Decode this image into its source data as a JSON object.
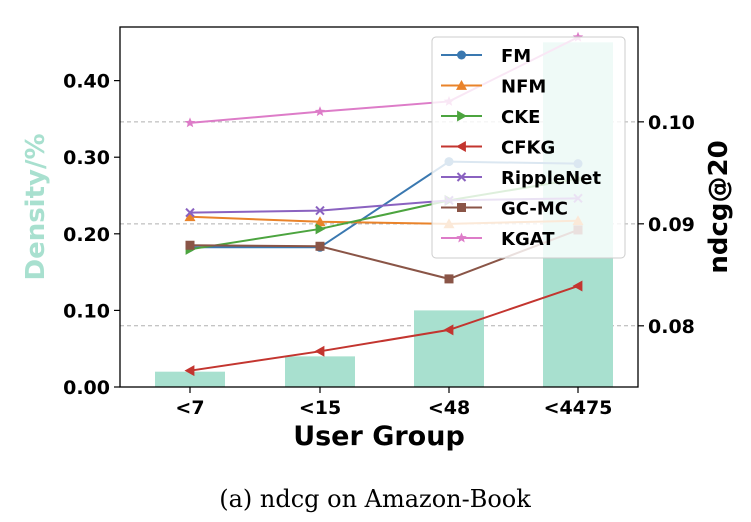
{
  "chart_data": {
    "type": "bar+line",
    "caption": "(a)  ndcg on Amazon-Book",
    "xlabel": "User Group",
    "categories": [
      "<7",
      "<15",
      "<48",
      "<4475"
    ],
    "density": {
      "axis_label": "Density/%",
      "color": "#a8e0cf",
      "values": [
        0.02,
        0.04,
        0.1,
        0.45
      ],
      "ylim": [
        0,
        0.47
      ],
      "ticks": [
        "0.00",
        "0.10",
        "0.20",
        "0.30",
        "0.40"
      ]
    },
    "ndcg": {
      "axis_label": "ndcg@20",
      "ylim": [
        0.074,
        0.1093
      ],
      "ticks": [
        "0.08",
        "0.09",
        "0.10"
      ]
    },
    "grid": "horizontal dashed at right-axis ticks",
    "legend_position": "top-right",
    "series": [
      {
        "name": "FM",
        "color": "#3a78b0",
        "marker": "circle",
        "values": [
          0.0877,
          0.0877,
          0.0961,
          0.0959
        ]
      },
      {
        "name": "NFM",
        "color": "#e9832a",
        "marker": "triangle-up",
        "values": [
          0.0907,
          0.0902,
          0.09,
          0.0903
        ]
      },
      {
        "name": "CKE",
        "color": "#4ca43f",
        "marker": "triangle-right",
        "values": [
          0.0875,
          0.0895,
          0.0923,
          0.0944
        ]
      },
      {
        "name": "CFKG",
        "color": "#c3352f",
        "marker": "triangle-left",
        "values": [
          0.0756,
          0.0775,
          0.0796,
          0.0839
        ]
      },
      {
        "name": "RippleNet",
        "color": "#8a62c0",
        "marker": "x",
        "values": [
          0.0911,
          0.0913,
          0.0923,
          0.0925
        ]
      },
      {
        "name": "GC-MC",
        "color": "#8a5547",
        "marker": "square",
        "values": [
          0.0879,
          0.0878,
          0.0846,
          0.0894
        ]
      },
      {
        "name": "KGAT",
        "color": "#dd7cc8",
        "marker": "star",
        "values": [
          0.0999,
          0.101,
          0.102,
          0.1083
        ]
      }
    ]
  }
}
